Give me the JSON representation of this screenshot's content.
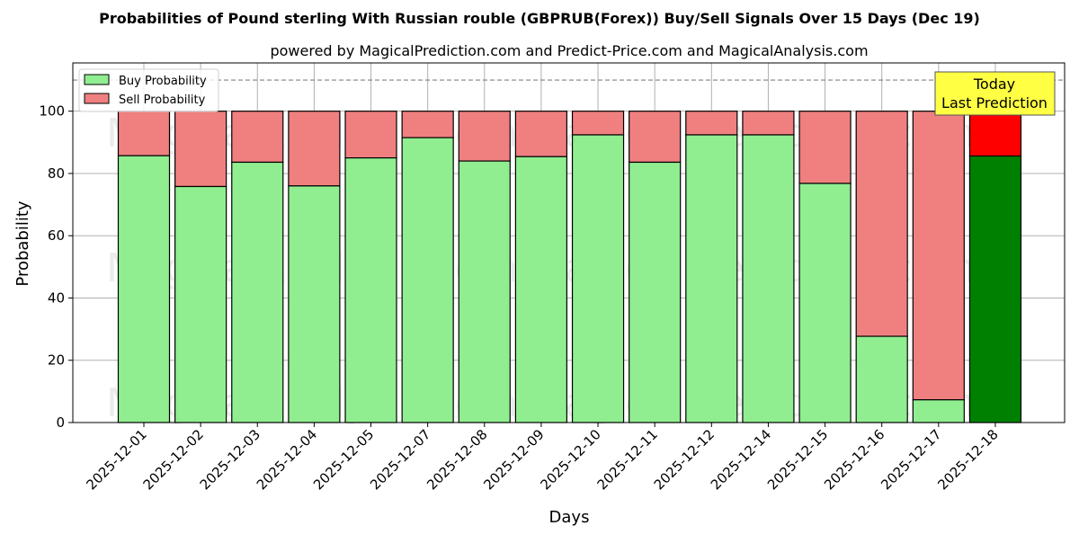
{
  "chart_data": {
    "type": "bar",
    "stacked": true,
    "title": "Probabilities of Pound sterling With Russian rouble (GBPRUB(Forex)) Buy/Sell Signals Over 15 Days (Dec 19)",
    "subtitle": "powered by MagicalPrediction.com and Predict-Price.com and MagicalAnalysis.com",
    "xlabel": "Days",
    "ylabel": "Probability",
    "ylim": [
      0,
      115.5
    ],
    "yticks": [
      0,
      20,
      40,
      60,
      80,
      100
    ],
    "grid": true,
    "legend_position": "upper left",
    "categories": [
      "2025-12-01",
      "2025-12-02",
      "2025-12-03",
      "2025-12-04",
      "2025-12-05",
      "2025-12-07",
      "2025-12-08",
      "2025-12-09",
      "2025-12-10",
      "2025-12-11",
      "2025-12-12",
      "2025-12-14",
      "2025-12-15",
      "2025-12-16",
      "2025-12-17",
      "2025-12-18"
    ],
    "series": [
      {
        "name": "Buy Probability",
        "color": "#90ee90",
        "values": [
          85.7,
          75.8,
          83.6,
          76.0,
          85.0,
          91.5,
          84.0,
          85.4,
          92.4,
          83.6,
          92.4,
          92.4,
          76.8,
          27.7,
          7.3,
          85.6
        ]
      },
      {
        "name": "Sell Probability",
        "color": "#f08080",
        "values": [
          14.3,
          24.2,
          16.4,
          24.0,
          15.0,
          8.5,
          16.0,
          14.6,
          7.6,
          16.4,
          7.6,
          7.6,
          23.2,
          72.3,
          92.7,
          14.4
        ]
      }
    ],
    "highlight": {
      "index": 15,
      "buy_color": "#008000",
      "sell_color": "#ff0000"
    },
    "reference_line": {
      "y": 110,
      "style": "dashed",
      "color": "#808080"
    },
    "annotation": {
      "lines": [
        "Today",
        "Last Prediction"
      ],
      "background": "#ffff44",
      "target_index": 15
    },
    "watermarks": [
      "MagicalAnalysis.com",
      "MagicalPrediction.com"
    ]
  }
}
